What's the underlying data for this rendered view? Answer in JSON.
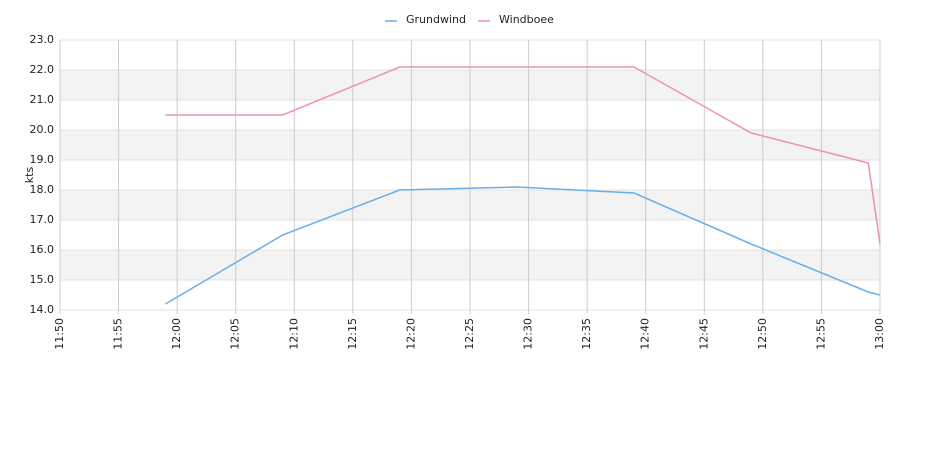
{
  "chart_data": {
    "type": "line",
    "ylabel": "kts",
    "x": [
      "11:59",
      "12:09",
      "12:19",
      "12:29",
      "12:39",
      "12:49",
      "12:59",
      "13:00"
    ],
    "series": [
      {
        "name": "Grundwind",
        "color": "#6aaee8",
        "values": [
          14.2,
          16.5,
          18.0,
          18.1,
          17.9,
          16.2,
          14.6,
          14.5
        ]
      },
      {
        "name": "Windboee",
        "color": "#ee8fc0",
        "values": [
          20.5,
          20.5,
          22.1,
          22.1,
          22.1,
          19.9,
          18.9,
          16.2
        ]
      }
    ],
    "xlim": [
      "11:50",
      "13:00"
    ],
    "xticks": [
      "11:50",
      "11:55",
      "12:00",
      "12:05",
      "12:10",
      "12:15",
      "12:20",
      "12:25",
      "12:30",
      "12:35",
      "12:40",
      "12:45",
      "12:50",
      "12:55",
      "13:00"
    ],
    "ylim": [
      14,
      23
    ],
    "yticks": [
      {
        "value": 14,
        "label": "14.0"
      },
      {
        "value": 15,
        "label": "15.0"
      },
      {
        "value": 16,
        "label": "16.0"
      },
      {
        "value": 17,
        "label": "17.0"
      },
      {
        "value": 18,
        "label": "18.0"
      },
      {
        "value": 19,
        "label": "19.0"
      },
      {
        "value": 20,
        "label": "20.0"
      },
      {
        "value": 21,
        "label": "21.0"
      },
      {
        "value": 22,
        "label": "22.0"
      },
      {
        "value": 23,
        "label": "23.0"
      }
    ],
    "grid": true,
    "legend": "top"
  }
}
